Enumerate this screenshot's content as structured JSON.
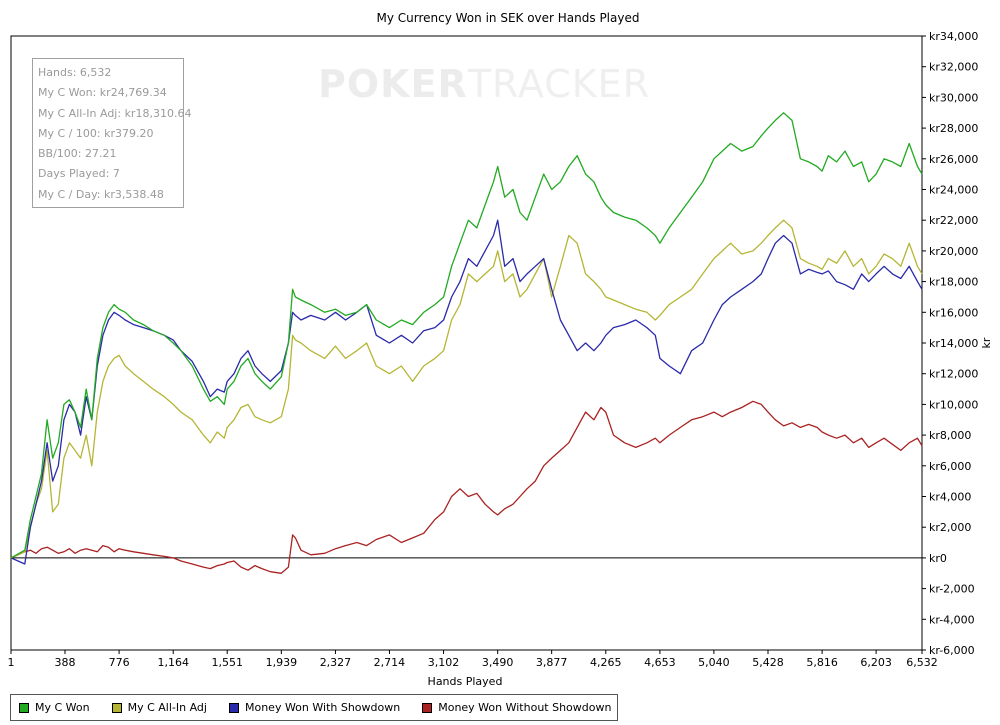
{
  "chart_data": {
    "type": "line",
    "title": "My Currency Won in SEK over Hands Played",
    "xlabel": "Hands Played",
    "ylabel": "kr",
    "xlim": [
      1,
      6532
    ],
    "ylim": [
      -6000,
      34000
    ],
    "x_ticks": [
      1,
      388,
      776,
      1164,
      1551,
      1939,
      2327,
      2714,
      3102,
      3490,
      3877,
      4265,
      4653,
      5040,
      5428,
      5816,
      6203,
      6532
    ],
    "x_tick_labels": [
      "1",
      "388",
      "776",
      "1,164",
      "1,551",
      "1,939",
      "2,327",
      "2,714",
      "3,102",
      "3,490",
      "3,877",
      "4,265",
      "4,653",
      "5,040",
      "5,428",
      "5,816",
      "6,203",
      "6,532"
    ],
    "y_ticks": [
      -6000,
      -4000,
      -2000,
      0,
      2000,
      4000,
      6000,
      8000,
      10000,
      12000,
      14000,
      16000,
      18000,
      20000,
      22000,
      24000,
      26000,
      28000,
      30000,
      32000,
      34000
    ],
    "y_tick_labels": [
      "kr-6,000",
      "kr-4,000",
      "kr-2,000",
      "kr0",
      "kr2,000",
      "kr4,000",
      "kr6,000",
      "kr8,000",
      "kr10,000",
      "kr12,000",
      "kr14,000",
      "kr16,000",
      "kr18,000",
      "kr20,000",
      "kr22,000",
      "kr24,000",
      "kr26,000",
      "kr28,000",
      "kr30,000",
      "kr32,000",
      "kr34,000"
    ],
    "grid": false,
    "legend_position": "bottom-left",
    "series": [
      {
        "name": "My C Won",
        "color": "#22aa22",
        "x": [
          1,
          100,
          140,
          180,
          220,
          260,
          300,
          340,
          380,
          420,
          460,
          500,
          540,
          580,
          620,
          660,
          700,
          740,
          776,
          820,
          880,
          950,
          1020,
          1100,
          1164,
          1220,
          1300,
          1380,
          1430,
          1480,
          1530,
          1551,
          1600,
          1650,
          1700,
          1750,
          1800,
          1860,
          1939,
          1990,
          2020,
          2040,
          2080,
          2150,
          2250,
          2327,
          2400,
          2480,
          2550,
          2620,
          2714,
          2800,
          2880,
          2960,
          3040,
          3102,
          3160,
          3220,
          3280,
          3340,
          3400,
          3460,
          3490,
          3540,
          3600,
          3650,
          3700,
          3760,
          3820,
          3877,
          3940,
          4000,
          4060,
          4120,
          4180,
          4230,
          4265,
          4320,
          4400,
          4480,
          4560,
          4620,
          4653,
          4720,
          4800,
          4880,
          4960,
          5040,
          5100,
          5160,
          5240,
          5320,
          5380,
          5428,
          5480,
          5540,
          5600,
          5660,
          5720,
          5780,
          5816,
          5860,
          5920,
          5980,
          6040,
          6100,
          6150,
          6203,
          6260,
          6320,
          6380,
          6440,
          6500,
          6532
        ],
        "y": [
          0,
          500,
          2500,
          4000,
          5500,
          9000,
          6500,
          7500,
          10000,
          10300,
          9500,
          8500,
          11000,
          9000,
          13000,
          15000,
          16000,
          16500,
          16200,
          16000,
          15500,
          15200,
          14800,
          14500,
          14000,
          13500,
          12500,
          11000,
          10200,
          10500,
          10000,
          11000,
          11500,
          12500,
          13000,
          12000,
          11500,
          11000,
          11800,
          14000,
          17500,
          17000,
          16800,
          16500,
          16000,
          16200,
          15800,
          16000,
          16500,
          15500,
          15000,
          15500,
          15200,
          16000,
          16500,
          17000,
          19000,
          20500,
          22000,
          21500,
          23000,
          24500,
          25500,
          23500,
          24000,
          22500,
          22000,
          23500,
          25000,
          24000,
          24500,
          25500,
          26200,
          25000,
          24500,
          23500,
          23000,
          22500,
          22200,
          22000,
          21500,
          21000,
          20500,
          21500,
          22500,
          23500,
          24500,
          26000,
          26500,
          27000,
          26500,
          26800,
          27500,
          28000,
          28500,
          29000,
          28500,
          26000,
          25800,
          25500,
          25200,
          26200,
          25800,
          26500,
          25500,
          25800,
          24500,
          25000,
          26000,
          25800,
          25500,
          27000,
          25500,
          25000
        ]
      },
      {
        "name": "My C All-In Adj",
        "color": "#b5b535",
        "x": [
          1,
          100,
          140,
          180,
          220,
          260,
          300,
          340,
          380,
          420,
          460,
          500,
          540,
          580,
          620,
          660,
          700,
          740,
          776,
          820,
          880,
          950,
          1020,
          1100,
          1164,
          1220,
          1300,
          1380,
          1430,
          1480,
          1530,
          1551,
          1600,
          1650,
          1700,
          1750,
          1800,
          1860,
          1939,
          1990,
          2020,
          2040,
          2080,
          2150,
          2250,
          2327,
          2400,
          2480,
          2550,
          2620,
          2714,
          2800,
          2880,
          2960,
          3040,
          3102,
          3160,
          3220,
          3280,
          3340,
          3400,
          3460,
          3490,
          3540,
          3600,
          3650,
          3700,
          3760,
          3820,
          3877,
          3940,
          4000,
          4060,
          4120,
          4180,
          4230,
          4265,
          4320,
          4400,
          4480,
          4560,
          4620,
          4653,
          4720,
          4800,
          4880,
          4960,
          5040,
          5100,
          5160,
          5240,
          5320,
          5380,
          5428,
          5480,
          5540,
          5600,
          5660,
          5720,
          5780,
          5816,
          5860,
          5920,
          5980,
          6040,
          6100,
          6150,
          6203,
          6260,
          6320,
          6380,
          6440,
          6500,
          6532
        ],
        "y": [
          0,
          400,
          2000,
          3500,
          4500,
          7000,
          3000,
          3500,
          6500,
          7500,
          7000,
          6500,
          8000,
          6000,
          9500,
          11500,
          12500,
          13000,
          13200,
          12500,
          12000,
          11500,
          11000,
          10500,
          10000,
          9500,
          9000,
          8000,
          7500,
          8200,
          7800,
          8500,
          9000,
          9800,
          10000,
          9200,
          9000,
          8800,
          9200,
          11000,
          14500,
          14200,
          14000,
          13500,
          13000,
          13800,
          13000,
          13500,
          14000,
          12500,
          12000,
          12500,
          11500,
          12500,
          13000,
          13500,
          15500,
          16500,
          18500,
          18000,
          18500,
          19000,
          20000,
          18000,
          18500,
          17000,
          17500,
          18500,
          19500,
          17000,
          19000,
          21000,
          20500,
          18500,
          18000,
          17500,
          17000,
          16800,
          16500,
          16200,
          16000,
          15500,
          15800,
          16500,
          17000,
          17500,
          18500,
          19500,
          20000,
          20500,
          19800,
          20000,
          20500,
          21000,
          21500,
          22000,
          21500,
          19500,
          19200,
          19000,
          18800,
          19500,
          19200,
          20000,
          19000,
          19500,
          18500,
          19000,
          19800,
          19500,
          19000,
          20500,
          19000,
          18500
        ]
      },
      {
        "name": "Money Won With Showdown",
        "color": "#2a2aaa",
        "x": [
          1,
          100,
          140,
          180,
          220,
          260,
          300,
          340,
          380,
          420,
          460,
          500,
          540,
          580,
          620,
          660,
          700,
          740,
          776,
          820,
          880,
          950,
          1020,
          1100,
          1164,
          1220,
          1300,
          1380,
          1430,
          1480,
          1530,
          1551,
          1600,
          1650,
          1700,
          1750,
          1800,
          1860,
          1939,
          1990,
          2020,
          2040,
          2080,
          2150,
          2250,
          2327,
          2400,
          2480,
          2550,
          2620,
          2714,
          2800,
          2880,
          2960,
          3040,
          3102,
          3160,
          3220,
          3280,
          3340,
          3400,
          3460,
          3490,
          3540,
          3600,
          3650,
          3700,
          3760,
          3820,
          3877,
          3940,
          4000,
          4060,
          4120,
          4180,
          4230,
          4265,
          4320,
          4400,
          4480,
          4560,
          4620,
          4653,
          4720,
          4800,
          4880,
          4960,
          5040,
          5100,
          5160,
          5240,
          5320,
          5380,
          5428,
          5480,
          5540,
          5600,
          5660,
          5720,
          5780,
          5816,
          5860,
          5920,
          5980,
          6040,
          6100,
          6150,
          6203,
          6260,
          6320,
          6380,
          6440,
          6500,
          6532
        ],
        "y": [
          0,
          -400,
          2000,
          3500,
          5000,
          7500,
          5000,
          6000,
          9000,
          10000,
          9500,
          8000,
          10500,
          9000,
          12500,
          14500,
          15500,
          16000,
          15800,
          15500,
          15200,
          15000,
          14800,
          14500,
          14200,
          13500,
          12800,
          11500,
          10500,
          11000,
          10800,
          11500,
          12000,
          13000,
          13500,
          12500,
          12000,
          11500,
          12200,
          14000,
          16000,
          15800,
          15500,
          15800,
          15500,
          16000,
          15500,
          16000,
          16500,
          14500,
          14000,
          14500,
          14000,
          14800,
          15000,
          15500,
          17000,
          18000,
          19500,
          19000,
          20000,
          21000,
          22000,
          19000,
          19500,
          18000,
          18500,
          19000,
          19500,
          17500,
          15500,
          14500,
          13500,
          14000,
          13500,
          14000,
          14500,
          15000,
          15200,
          15500,
          15000,
          14500,
          13000,
          12500,
          12000,
          13500,
          14000,
          15500,
          16500,
          17000,
          17500,
          18000,
          18500,
          19500,
          20500,
          21000,
          20500,
          18500,
          18800,
          18600,
          18500,
          18700,
          18000,
          17800,
          17500,
          18500,
          18000,
          18500,
          19000,
          18500,
          18200,
          19000,
          18000,
          17500
        ]
      },
      {
        "name": "Money Won Without Showdown",
        "color": "#aa2222",
        "x": [
          1,
          100,
          140,
          180,
          220,
          260,
          300,
          340,
          380,
          420,
          460,
          500,
          540,
          580,
          620,
          660,
          700,
          740,
          776,
          820,
          880,
          950,
          1020,
          1100,
          1164,
          1220,
          1300,
          1380,
          1430,
          1480,
          1530,
          1551,
          1600,
          1650,
          1700,
          1750,
          1800,
          1860,
          1939,
          1990,
          2020,
          2040,
          2080,
          2150,
          2250,
          2327,
          2400,
          2480,
          2550,
          2620,
          2714,
          2800,
          2880,
          2960,
          3040,
          3102,
          3160,
          3220,
          3280,
          3340,
          3400,
          3460,
          3490,
          3540,
          3600,
          3650,
          3700,
          3760,
          3820,
          3877,
          3940,
          4000,
          4060,
          4120,
          4180,
          4230,
          4265,
          4320,
          4400,
          4480,
          4560,
          4620,
          4653,
          4720,
          4800,
          4880,
          4960,
          5040,
          5100,
          5160,
          5240,
          5320,
          5380,
          5428,
          5480,
          5540,
          5600,
          5660,
          5720,
          5780,
          5816,
          5860,
          5920,
          5980,
          6040,
          6100,
          6150,
          6203,
          6260,
          6320,
          6380,
          6440,
          6500,
          6532
        ],
        "y": [
          0,
          400,
          500,
          300,
          600,
          700,
          500,
          300,
          400,
          600,
          300,
          500,
          600,
          500,
          400,
          800,
          700,
          400,
          600,
          500,
          400,
          300,
          200,
          100,
          0,
          -200,
          -400,
          -600,
          -700,
          -500,
          -400,
          -300,
          -200,
          -600,
          -800,
          -500,
          -700,
          -900,
          -1000,
          -600,
          1500,
          1300,
          500,
          200,
          300,
          600,
          800,
          1000,
          800,
          1200,
          1500,
          1000,
          1300,
          1600,
          2500,
          3000,
          4000,
          4500,
          4000,
          4200,
          3500,
          3000,
          2800,
          3200,
          3500,
          4000,
          4500,
          5000,
          6000,
          6500,
          7000,
          7500,
          8500,
          9500,
          9000,
          9800,
          9500,
          8000,
          7500,
          7200,
          7500,
          7800,
          7500,
          8000,
          8500,
          9000,
          9200,
          9500,
          9200,
          9500,
          9800,
          10200,
          10000,
          9500,
          9000,
          8600,
          8800,
          8500,
          8700,
          8500,
          8200,
          8000,
          7800,
          8000,
          7500,
          7800,
          7200,
          7500,
          7800,
          7400,
          7000,
          7500,
          7800,
          7300
        ]
      }
    ]
  },
  "stats": [
    "Hands: 6,532",
    "My C Won: kr24,769.34",
    "My C All-In Adj: kr18,310.64",
    "My C / 100: kr379.20",
    "BB/100: 27.21",
    "Days Played: 7",
    "My C / Day: kr3,538.48"
  ],
  "watermark": {
    "bold": "POKER",
    "light": "TRACKER"
  }
}
